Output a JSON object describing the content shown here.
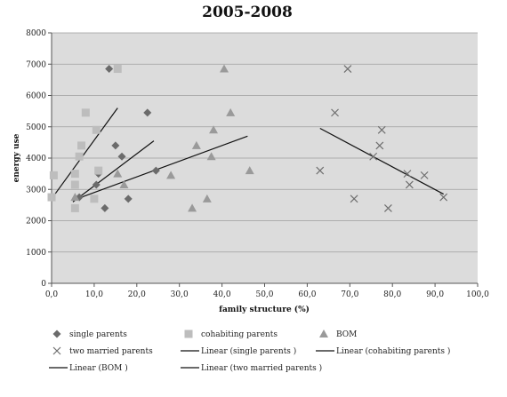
{
  "chart_data": {
    "type": "scatter",
    "title": "2005-2008",
    "xlabel": "family structure (%)",
    "ylabel": "energy use",
    "xlim": [
      0,
      100
    ],
    "ylim": [
      0,
      8000
    ],
    "x_ticks": [
      "0,0",
      "10,0",
      "20,0",
      "30,0",
      "40,0",
      "50,0",
      "60,0",
      "70,0",
      "80,0",
      "90,0",
      "100,0"
    ],
    "y_ticks": [
      "0",
      "1000",
      "2000",
      "3000",
      "4000",
      "5000",
      "6000",
      "7000",
      "8000"
    ],
    "grid": "horizontal",
    "background_color": "#dcdcdc",
    "series": [
      {
        "name": "single parents",
        "marker": "diamond",
        "color": "#6b6b6b",
        "points": [
          [
            13.5,
            6850
          ],
          [
            22.5,
            5450
          ],
          [
            15,
            4400
          ],
          [
            16.5,
            4050
          ],
          [
            11,
            3500
          ],
          [
            10.5,
            3150
          ],
          [
            24.5,
            3600
          ],
          [
            6.5,
            2750
          ],
          [
            18,
            2700
          ],
          [
            12.5,
            2400
          ]
        ]
      },
      {
        "name": "cohabiting parents",
        "marker": "square",
        "color": "#bdbdbd",
        "points": [
          [
            15.5,
            6850
          ],
          [
            8,
            5450
          ],
          [
            10.5,
            4900
          ],
          [
            7,
            4400
          ],
          [
            6.5,
            4050
          ],
          [
            11,
            3600
          ],
          [
            5.5,
            3500
          ],
          [
            0.5,
            3450
          ],
          [
            5.5,
            3150
          ],
          [
            0,
            2750
          ],
          [
            10,
            2700
          ],
          [
            5.5,
            2400
          ]
        ]
      },
      {
        "name": "BOM",
        "marker": "triangle",
        "color": "#9a9a9a",
        "points": [
          [
            40.5,
            6850
          ],
          [
            42,
            5450
          ],
          [
            38,
            4900
          ],
          [
            34,
            4400
          ],
          [
            37.5,
            4050
          ],
          [
            46.5,
            3600
          ],
          [
            15.5,
            3500
          ],
          [
            28,
            3450
          ],
          [
            17,
            3150
          ],
          [
            5.5,
            2750
          ],
          [
            36.5,
            2700
          ],
          [
            33,
            2400
          ]
        ]
      },
      {
        "name": "two married parents",
        "marker": "x",
        "color": "#6f6f6f",
        "points": [
          [
            69.5,
            6850
          ],
          [
            66.5,
            5450
          ],
          [
            77.5,
            4900
          ],
          [
            77,
            4400
          ],
          [
            75.5,
            4050
          ],
          [
            63,
            3600
          ],
          [
            83.5,
            3500
          ],
          [
            87.5,
            3450
          ],
          [
            84,
            3150
          ],
          [
            92,
            2750
          ],
          [
            71,
            2700
          ],
          [
            79,
            2400
          ]
        ]
      }
    ],
    "trendlines": [
      {
        "name": "Linear (single parents )",
        "x": [
          5,
          24
        ],
        "y": [
          2600,
          4550
        ],
        "color": "#111111"
      },
      {
        "name": "Linear (cohabiting parents )",
        "x": [
          0,
          15.5
        ],
        "y": [
          2700,
          5600
        ],
        "color": "#111111"
      },
      {
        "name": "Linear (BOM )",
        "x": [
          5,
          46
        ],
        "y": [
          2650,
          4700
        ],
        "color": "#111111"
      },
      {
        "name": "Linear (two married parents )",
        "x": [
          63,
          92
        ],
        "y": [
          4950,
          2850
        ],
        "color": "#111111"
      }
    ],
    "legend": {
      "placement": "bottom",
      "entries": [
        "single parents",
        "cohabiting parents",
        "BOM",
        "two married parents",
        "Linear (single parents )",
        "Linear (cohabiting parents )",
        "Linear (BOM )",
        "Linear (two married parents )"
      ]
    }
  }
}
